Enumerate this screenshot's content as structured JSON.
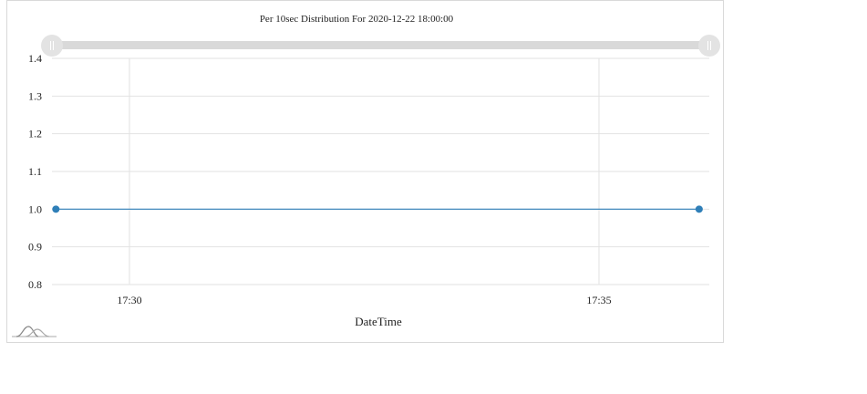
{
  "chart_data": {
    "type": "line",
    "title": "Per 10sec Distribution For 2020-12-22 18:00:00",
    "xlabel": "DateTime",
    "ylabel": "",
    "x_ticks": [
      "17:30",
      "17:35"
    ],
    "y_ticks": [
      "1.4",
      "1.3",
      "1.2",
      "1.1",
      "1.0",
      "0.9",
      "0.8"
    ],
    "ylim": [
      0.8,
      1.4
    ],
    "grid": true,
    "series": [
      {
        "color": "#2f7fb8",
        "points": [
          {
            "x": "17:29:13",
            "y": 1.0
          },
          {
            "x": "17:36:04",
            "y": 1.0
          }
        ]
      }
    ]
  },
  "range_slider": {
    "start_handle_icon": "grip-lines-icon",
    "end_handle_icon": "grip-lines-icon"
  },
  "logo": {
    "icon": "distribution-curve-logo-icon"
  }
}
